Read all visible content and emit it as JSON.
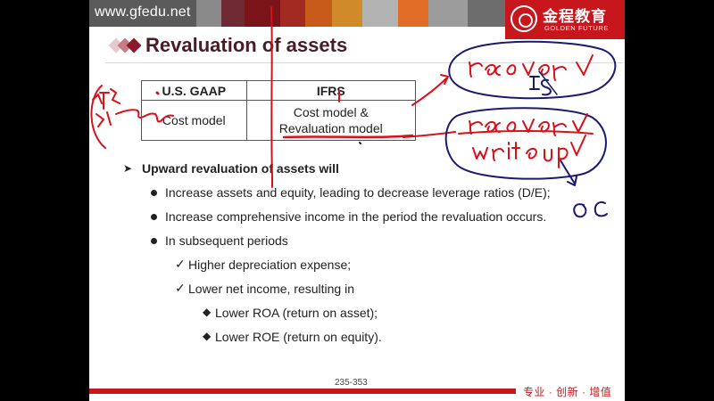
{
  "header": {
    "site_url": "www.gfedu.net",
    "logo_cn": "金程教育",
    "logo_en": "GOLDEN FUTURE"
  },
  "title": "Revaluation of assets",
  "table": {
    "headers": [
      "U.S. GAAP",
      "IFRS"
    ],
    "row": [
      "Cost model",
      "Cost model &",
      "Revaluation model"
    ]
  },
  "content": {
    "heading": "Upward revaluation of assets will",
    "bullets": [
      "Increase assets and equity, leading to decrease leverage ratios (D/E);",
      "Increase comprehensive income in the period the revaluation occurs.",
      "In subsequent periods"
    ],
    "checks": [
      "Higher depreciation expense;",
      "Lower net income, resulting in"
    ],
    "subitems": [
      "Lower ROA (return on asset);",
      "Lower ROE (return on equity)."
    ]
  },
  "footer": {
    "page_number": "235-353",
    "slogan": "专业 · 创新 · 增值"
  },
  "colors": {
    "brand_red": "#c8161d",
    "title_color": "#4a1c25",
    "ink_red": "#d8101a",
    "ink_blue": "#1a1a70"
  },
  "icons": [
    "bullet-arrow-icon",
    "bullet-dot-icon",
    "checkmark-icon",
    "diamond-bullet-icon",
    "logo-seal-icon"
  ]
}
